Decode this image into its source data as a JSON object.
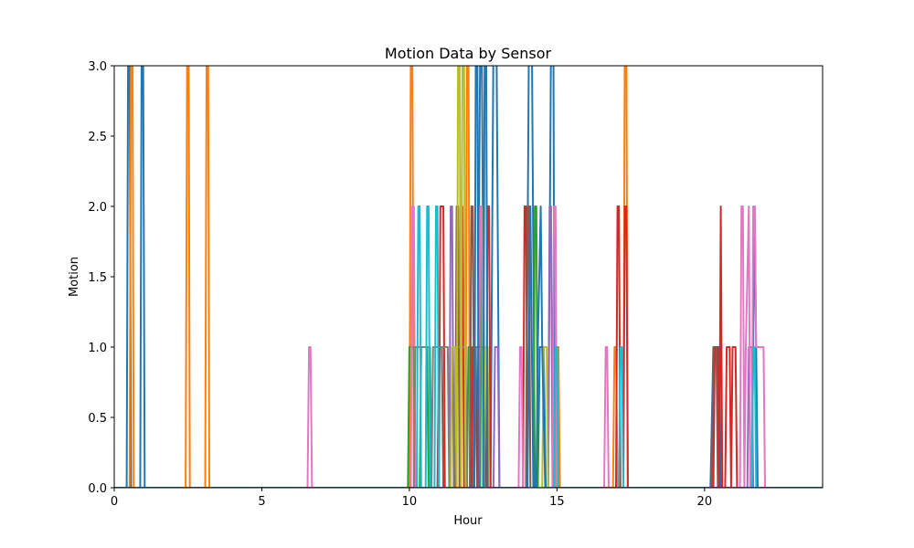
{
  "chart_data": {
    "type": "line",
    "title": "Motion Data by Sensor",
    "xlabel": "Hour",
    "ylabel": "Motion",
    "xlim": [
      0,
      24
    ],
    "ylim": [
      0,
      3
    ],
    "x_ticks": [
      0,
      5,
      10,
      15,
      20
    ],
    "y_ticks": [
      0.0,
      0.5,
      1.0,
      1.5,
      2.0,
      2.5,
      3.0
    ],
    "x_tick_labels": [
      "0",
      "5",
      "10",
      "15",
      "20"
    ],
    "y_tick_labels": [
      "0.0",
      "0.5",
      "1.0",
      "1.5",
      "2.0",
      "2.5",
      "3.0"
    ],
    "grid": false,
    "series": [
      {
        "color": "#1f77b4",
        "points": [
          [
            0,
            0
          ],
          [
            0.42,
            0
          ],
          [
            0.47,
            3.2
          ],
          [
            0.52,
            3.2
          ],
          [
            0.57,
            0
          ],
          [
            0.88,
            0
          ],
          [
            0.93,
            3.2
          ],
          [
            0.98,
            3.2
          ],
          [
            1.03,
            0
          ],
          [
            12.3,
            0
          ],
          [
            12.4,
            3.2
          ],
          [
            12.45,
            3.2
          ],
          [
            12.55,
            0
          ],
          [
            12.75,
            0
          ],
          [
            12.85,
            3.2
          ],
          [
            12.95,
            3.2
          ],
          [
            13.05,
            0
          ],
          [
            13.95,
            0
          ],
          [
            14.05,
            3.2
          ],
          [
            14.15,
            3.2
          ],
          [
            14.25,
            0
          ],
          [
            14.35,
            0
          ],
          [
            14.42,
            1
          ],
          [
            14.55,
            1
          ],
          [
            14.62,
            0
          ],
          [
            14.7,
            0
          ],
          [
            14.8,
            3.2
          ],
          [
            14.88,
            3.2
          ],
          [
            14.92,
            0
          ],
          [
            20.2,
            0
          ],
          [
            20.3,
            1
          ],
          [
            20.5,
            1
          ],
          [
            20.55,
            0
          ],
          [
            21.6,
            0
          ],
          [
            21.65,
            1
          ],
          [
            21.7,
            2
          ],
          [
            21.75,
            1
          ],
          [
            21.8,
            0
          ],
          [
            24,
            0
          ]
        ]
      },
      {
        "color": "#ff7f0e",
        "points": [
          [
            0,
            0
          ],
          [
            0.52,
            0
          ],
          [
            0.57,
            3.2
          ],
          [
            0.62,
            3.2
          ],
          [
            0.66,
            0
          ],
          [
            2.42,
            0
          ],
          [
            2.47,
            3.2
          ],
          [
            2.52,
            3.2
          ],
          [
            2.56,
            0
          ],
          [
            3.08,
            0
          ],
          [
            3.13,
            3.2
          ],
          [
            3.18,
            3.2
          ],
          [
            3.22,
            0
          ],
          [
            10.0,
            0
          ],
          [
            10.05,
            3.2
          ],
          [
            10.1,
            3.2
          ],
          [
            10.15,
            0
          ],
          [
            11.9,
            0
          ],
          [
            11.95,
            3.2
          ],
          [
            12.0,
            3.2
          ],
          [
            12.05,
            0
          ],
          [
            14.95,
            0
          ],
          [
            15.0,
            1
          ],
          [
            15.05,
            1
          ],
          [
            15.1,
            0
          ],
          [
            16.9,
            0
          ],
          [
            16.95,
            1
          ],
          [
            17.0,
            1
          ],
          [
            17.05,
            0
          ],
          [
            17.25,
            0
          ],
          [
            17.3,
            3.2
          ],
          [
            17.35,
            3.2
          ],
          [
            17.4,
            0
          ],
          [
            24,
            0
          ]
        ]
      },
      {
        "color": "#2ca02c",
        "points": [
          [
            0,
            0
          ],
          [
            9.95,
            0
          ],
          [
            10.0,
            1
          ],
          [
            10.15,
            1
          ],
          [
            10.2,
            0
          ],
          [
            10.35,
            0
          ],
          [
            10.4,
            1
          ],
          [
            10.6,
            1
          ],
          [
            10.65,
            0
          ],
          [
            11.95,
            0
          ],
          [
            12.0,
            1
          ],
          [
            12.1,
            1
          ],
          [
            12.15,
            0
          ],
          [
            12.4,
            0
          ],
          [
            12.45,
            2
          ],
          [
            12.5,
            2
          ],
          [
            12.55,
            0
          ],
          [
            14.2,
            0
          ],
          [
            14.25,
            2
          ],
          [
            14.3,
            2
          ],
          [
            14.35,
            0
          ],
          [
            24,
            0
          ]
        ]
      },
      {
        "color": "#d62728",
        "points": [
          [
            0,
            0
          ],
          [
            11.0,
            0
          ],
          [
            11.05,
            2
          ],
          [
            11.15,
            2
          ],
          [
            11.2,
            0
          ],
          [
            11.7,
            0
          ],
          [
            11.75,
            2
          ],
          [
            11.8,
            2
          ],
          [
            11.85,
            0
          ],
          [
            12.1,
            0
          ],
          [
            12.15,
            1
          ],
          [
            12.25,
            1
          ],
          [
            12.3,
            0
          ],
          [
            12.6,
            0
          ],
          [
            12.65,
            2
          ],
          [
            12.7,
            2
          ],
          [
            12.75,
            0
          ],
          [
            13.85,
            0
          ],
          [
            13.9,
            2
          ],
          [
            13.95,
            2
          ],
          [
            14.0,
            0
          ],
          [
            17.0,
            0
          ],
          [
            17.05,
            2
          ],
          [
            17.1,
            2
          ],
          [
            17.15,
            0
          ],
          [
            17.25,
            0
          ],
          [
            17.3,
            2
          ],
          [
            17.35,
            2
          ],
          [
            17.4,
            0
          ],
          [
            20.3,
            0
          ],
          [
            20.35,
            1
          ],
          [
            20.45,
            1
          ],
          [
            20.5,
            0
          ],
          [
            20.55,
            2
          ],
          [
            20.6,
            0
          ],
          [
            20.7,
            0
          ],
          [
            20.75,
            1
          ],
          [
            20.85,
            1
          ],
          [
            20.9,
            0
          ],
          [
            20.95,
            1
          ],
          [
            21.05,
            1
          ],
          [
            21.1,
            0
          ],
          [
            24,
            0
          ]
        ]
      },
      {
        "color": "#9467bd",
        "points": [
          [
            0,
            0
          ],
          [
            11.35,
            0
          ],
          [
            11.4,
            2
          ],
          [
            11.45,
            2
          ],
          [
            11.5,
            0
          ],
          [
            12.85,
            0
          ],
          [
            12.9,
            1
          ],
          [
            13.0,
            1
          ],
          [
            13.05,
            0
          ],
          [
            14.7,
            0
          ],
          [
            14.75,
            2
          ],
          [
            14.8,
            2
          ],
          [
            14.85,
            0
          ],
          [
            21.45,
            0
          ],
          [
            21.5,
            1
          ],
          [
            21.6,
            1
          ],
          [
            21.65,
            0
          ],
          [
            24,
            0
          ]
        ]
      },
      {
        "color": "#8c564b",
        "points": [
          [
            0,
            0
          ],
          [
            10.95,
            0
          ],
          [
            11.0,
            1
          ],
          [
            11.1,
            1
          ],
          [
            11.15,
            0
          ],
          [
            11.55,
            0
          ],
          [
            11.6,
            2
          ],
          [
            11.65,
            2
          ],
          [
            11.7,
            0
          ],
          [
            12.05,
            0
          ],
          [
            12.1,
            2
          ],
          [
            12.15,
            2
          ],
          [
            12.2,
            0
          ],
          [
            13.95,
            0
          ],
          [
            14.0,
            2
          ],
          [
            14.05,
            2
          ],
          [
            14.1,
            0
          ],
          [
            20.25,
            0
          ],
          [
            20.3,
            1
          ],
          [
            20.4,
            1
          ],
          [
            20.45,
            0
          ],
          [
            24,
            0
          ]
        ]
      },
      {
        "color": "#e377c2",
        "points": [
          [
            0,
            0
          ],
          [
            6.55,
            0
          ],
          [
            6.6,
            1
          ],
          [
            6.65,
            1
          ],
          [
            6.7,
            0
          ],
          [
            10.05,
            0
          ],
          [
            10.1,
            2
          ],
          [
            10.15,
            2
          ],
          [
            10.2,
            0
          ],
          [
            12.35,
            0
          ],
          [
            12.4,
            2
          ],
          [
            12.45,
            2
          ],
          [
            12.5,
            0
          ],
          [
            13.7,
            0
          ],
          [
            13.75,
            1
          ],
          [
            13.8,
            1
          ],
          [
            13.85,
            0
          ],
          [
            14.85,
            0
          ],
          [
            14.9,
            2
          ],
          [
            14.95,
            2
          ],
          [
            15.0,
            0
          ],
          [
            16.6,
            0
          ],
          [
            16.65,
            1
          ],
          [
            16.7,
            1
          ],
          [
            16.75,
            0
          ],
          [
            21.2,
            0
          ],
          [
            21.25,
            2
          ],
          [
            21.3,
            2
          ],
          [
            21.35,
            0
          ],
          [
            21.4,
            1
          ],
          [
            21.5,
            2
          ],
          [
            21.55,
            0
          ],
          [
            21.6,
            0
          ],
          [
            21.65,
            2
          ],
          [
            21.7,
            2
          ],
          [
            21.75,
            1
          ],
          [
            21.8,
            1
          ],
          [
            22.0,
            1
          ],
          [
            22.05,
            0
          ],
          [
            24,
            0
          ]
        ]
      },
      {
        "color": "#7f7f7f",
        "points": [
          [
            0,
            0
          ],
          [
            10.15,
            0
          ],
          [
            10.2,
            1
          ],
          [
            10.7,
            1
          ],
          [
            10.75,
            0
          ],
          [
            10.8,
            1
          ],
          [
            11.3,
            1
          ],
          [
            11.35,
            0
          ],
          [
            11.5,
            0
          ],
          [
            11.55,
            1
          ],
          [
            11.9,
            1
          ],
          [
            11.95,
            0
          ],
          [
            12.2,
            0
          ],
          [
            12.25,
            1
          ],
          [
            12.5,
            1
          ],
          [
            12.55,
            0
          ],
          [
            13.05,
            0
          ],
          [
            13.1,
            0
          ],
          [
            24,
            0
          ]
        ]
      },
      {
        "color": "#bcbd22",
        "points": [
          [
            0,
            0
          ],
          [
            11.4,
            0
          ],
          [
            11.45,
            1
          ],
          [
            11.55,
            1
          ],
          [
            11.6,
            0
          ],
          [
            11.65,
            3.2
          ],
          [
            11.7,
            3.2
          ],
          [
            11.75,
            0
          ],
          [
            11.8,
            3.2
          ],
          [
            11.85,
            3.2
          ],
          [
            11.9,
            0
          ],
          [
            12.5,
            0
          ],
          [
            12.55,
            1
          ],
          [
            12.65,
            1
          ],
          [
            12.7,
            0
          ],
          [
            14.5,
            0
          ],
          [
            14.55,
            1
          ],
          [
            14.65,
            1
          ],
          [
            14.7,
            0
          ],
          [
            24,
            0
          ]
        ]
      },
      {
        "color": "#17becf",
        "points": [
          [
            0,
            0
          ],
          [
            10.25,
            0
          ],
          [
            10.3,
            2
          ],
          [
            10.35,
            2
          ],
          [
            10.4,
            0
          ],
          [
            10.55,
            0
          ],
          [
            10.6,
            2
          ],
          [
            10.65,
            2
          ],
          [
            10.7,
            0
          ],
          [
            10.85,
            0
          ],
          [
            10.9,
            2
          ],
          [
            10.95,
            2
          ],
          [
            11.0,
            0
          ],
          [
            14.9,
            0
          ],
          [
            14.95,
            1
          ],
          [
            15.0,
            1
          ],
          [
            15.05,
            0
          ],
          [
            17.1,
            0
          ],
          [
            17.15,
            1
          ],
          [
            17.2,
            1
          ],
          [
            17.25,
            0
          ],
          [
            21.6,
            0
          ],
          [
            21.65,
            1
          ],
          [
            21.7,
            1
          ],
          [
            21.75,
            0
          ],
          [
            24,
            0
          ]
        ]
      },
      {
        "color": "#1f77b4",
        "points": [
          [
            0,
            0
          ],
          [
            12.2,
            0
          ],
          [
            12.25,
            3.2
          ],
          [
            12.3,
            3.2
          ],
          [
            12.35,
            0
          ],
          [
            12.5,
            0
          ],
          [
            12.55,
            3.2
          ],
          [
            12.6,
            3.2
          ],
          [
            12.65,
            0
          ],
          [
            14.0,
            0
          ],
          [
            14.05,
            1
          ],
          [
            14.1,
            2
          ],
          [
            14.15,
            1
          ],
          [
            14.2,
            0
          ],
          [
            14.3,
            0
          ],
          [
            14.35,
            1
          ],
          [
            14.45,
            2
          ],
          [
            14.5,
            1
          ],
          [
            14.6,
            0
          ],
          [
            24,
            0
          ]
        ]
      }
    ]
  }
}
